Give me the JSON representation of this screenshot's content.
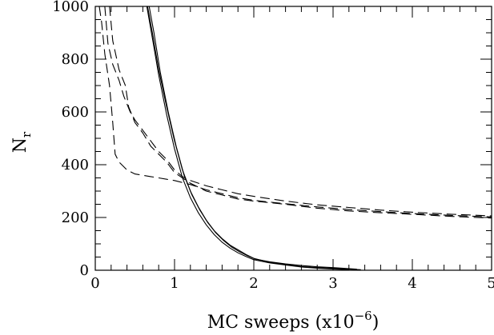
{
  "chart_data": {
    "type": "line",
    "xlabel": "MC sweeps (x10",
    "xlabel_sup": "−6",
    "xlabel_end": ")",
    "ylabel": "N",
    "ylabel_sub": "r",
    "xlim": [
      0,
      5
    ],
    "ylim": [
      0,
      1000
    ],
    "x_ticks": [
      "0",
      "1",
      "2",
      "3",
      "4",
      "5"
    ],
    "y_ticks": [
      "0",
      "200",
      "400",
      "600",
      "800",
      "1000"
    ],
    "grid": false,
    "legend": "none",
    "series": [
      {
        "style": "solid",
        "points": [
          [
            0.66,
            1000
          ],
          [
            0.72,
            900
          ],
          [
            0.8,
            760
          ],
          [
            0.9,
            620
          ],
          [
            1.0,
            490
          ],
          [
            1.1,
            380
          ],
          [
            1.2,
            300
          ],
          [
            1.3,
            240
          ],
          [
            1.4,
            190
          ],
          [
            1.5,
            150
          ],
          [
            1.6,
            120
          ],
          [
            1.7,
            95
          ],
          [
            1.8,
            78
          ],
          [
            1.9,
            60
          ],
          [
            2.0,
            45
          ],
          [
            2.2,
            30
          ],
          [
            2.4,
            22
          ],
          [
            2.6,
            14
          ],
          [
            2.8,
            10
          ],
          [
            3.0,
            7
          ],
          [
            3.2,
            4
          ],
          [
            3.35,
            2
          ]
        ]
      },
      {
        "style": "solid",
        "points": [
          [
            0.68,
            1000
          ],
          [
            0.74,
            900
          ],
          [
            0.82,
            750
          ],
          [
            0.92,
            600
          ],
          [
            1.02,
            470
          ],
          [
            1.12,
            360
          ],
          [
            1.22,
            285
          ],
          [
            1.32,
            228
          ],
          [
            1.42,
            180
          ],
          [
            1.52,
            142
          ],
          [
            1.62,
            112
          ],
          [
            1.72,
            88
          ],
          [
            1.82,
            70
          ],
          [
            1.92,
            55
          ],
          [
            2.02,
            42
          ],
          [
            2.2,
            32
          ],
          [
            2.4,
            24
          ],
          [
            2.6,
            18
          ],
          [
            2.8,
            13
          ],
          [
            3.0,
            10
          ],
          [
            3.15,
            7
          ],
          [
            3.3,
            4
          ]
        ]
      },
      {
        "style": "solid",
        "points": [
          [
            0.65,
            1000
          ],
          [
            0.72,
            880
          ],
          [
            0.8,
            740
          ],
          [
            0.9,
            590
          ],
          [
            1.0,
            460
          ],
          [
            1.1,
            350
          ],
          [
            1.2,
            275
          ],
          [
            1.3,
            218
          ],
          [
            1.4,
            172
          ],
          [
            1.5,
            135
          ],
          [
            1.6,
            106
          ],
          [
            1.7,
            84
          ],
          [
            1.8,
            66
          ],
          [
            1.9,
            52
          ],
          [
            2.0,
            40
          ],
          [
            2.2,
            28
          ],
          [
            2.4,
            20
          ],
          [
            2.6,
            12
          ],
          [
            2.8,
            8
          ],
          [
            3.0,
            5
          ],
          [
            3.2,
            2
          ]
        ]
      },
      {
        "style": "dashed",
        "points": [
          [
            0.05,
            1000
          ],
          [
            0.08,
            940
          ],
          [
            0.12,
            820
          ],
          [
            0.18,
            700
          ],
          [
            0.22,
            560
          ],
          [
            0.25,
            440
          ],
          [
            0.3,
            410
          ],
          [
            0.4,
            380
          ],
          [
            0.5,
            365
          ],
          [
            0.6,
            360
          ],
          [
            0.7,
            355
          ],
          [
            0.8,
            350
          ],
          [
            0.9,
            345
          ],
          [
            1.0,
            340
          ],
          [
            1.2,
            325
          ],
          [
            1.4,
            305
          ],
          [
            1.6,
            290
          ],
          [
            1.8,
            275
          ],
          [
            2.0,
            265
          ],
          [
            2.4,
            252
          ],
          [
            2.8,
            240
          ],
          [
            3.2,
            230
          ],
          [
            3.6,
            222
          ],
          [
            4.0,
            215
          ],
          [
            4.5,
            208
          ],
          [
            5.0,
            202
          ]
        ]
      },
      {
        "style": "dashed",
        "points": [
          [
            0.18,
            1000
          ],
          [
            0.22,
            870
          ],
          [
            0.3,
            760
          ],
          [
            0.38,
            700
          ],
          [
            0.42,
            620
          ],
          [
            0.5,
            560
          ],
          [
            0.6,
            520
          ],
          [
            0.7,
            470
          ],
          [
            0.8,
            440
          ],
          [
            0.9,
            410
          ],
          [
            1.0,
            370
          ],
          [
            1.1,
            350
          ],
          [
            1.2,
            330
          ],
          [
            1.4,
            300
          ],
          [
            1.6,
            285
          ],
          [
            1.8,
            270
          ],
          [
            2.0,
            262
          ],
          [
            2.4,
            250
          ],
          [
            2.8,
            235
          ],
          [
            3.2,
            225
          ],
          [
            3.6,
            218
          ],
          [
            4.0,
            212
          ],
          [
            4.5,
            204
          ],
          [
            5.0,
            198
          ]
        ]
      },
      {
        "style": "dashed",
        "points": [
          [
            0.12,
            1000
          ],
          [
            0.16,
            860
          ],
          [
            0.22,
            780
          ],
          [
            0.3,
            720
          ],
          [
            0.36,
            660
          ],
          [
            0.44,
            600
          ],
          [
            0.5,
            570
          ],
          [
            0.6,
            530
          ],
          [
            0.7,
            490
          ],
          [
            0.8,
            450
          ],
          [
            0.9,
            420
          ],
          [
            1.0,
            380
          ],
          [
            1.1,
            355
          ],
          [
            1.2,
            340
          ],
          [
            1.4,
            320
          ],
          [
            1.6,
            305
          ],
          [
            1.8,
            290
          ],
          [
            2.0,
            280
          ],
          [
            2.4,
            262
          ],
          [
            2.8,
            248
          ],
          [
            3.2,
            238
          ],
          [
            3.6,
            228
          ],
          [
            4.0,
            220
          ],
          [
            4.5,
            212
          ],
          [
            5.0,
            206
          ]
        ]
      }
    ]
  }
}
